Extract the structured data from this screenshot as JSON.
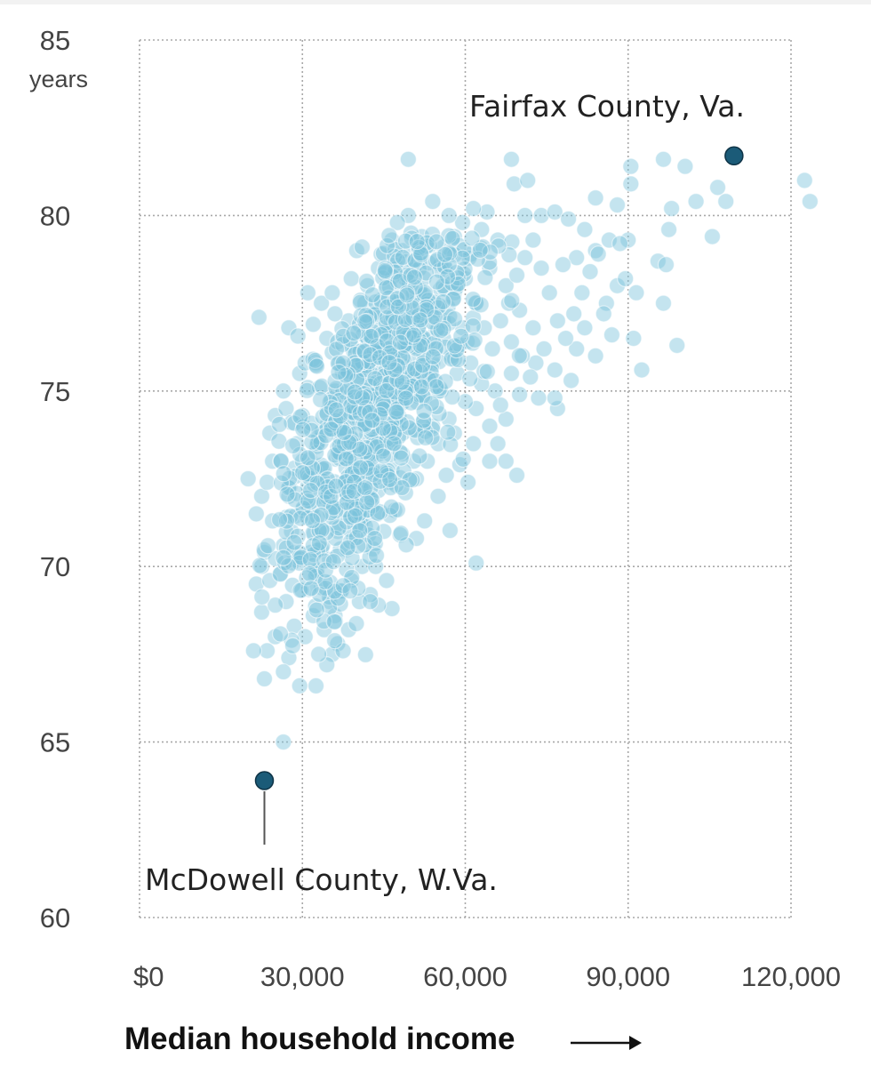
{
  "chart_data": {
    "type": "scatter",
    "xlabel": "Median household income",
    "ylabel": "",
    "y_unit": "years",
    "xlim": [
      0,
      120000
    ],
    "ylim": [
      60,
      85
    ],
    "x_ticks": [
      0,
      30000,
      60000,
      90000,
      120000
    ],
    "x_tick_labels": [
      "$0",
      "30,000",
      "60,000",
      "90,000",
      "120,000"
    ],
    "y_ticks": [
      60,
      65,
      70,
      75,
      80,
      85
    ],
    "y_tick_labels": [
      "60",
      "65",
      "70",
      "75",
      "80",
      "85"
    ],
    "grid": true,
    "point_color": "#7cc3dc",
    "highlight_color": "#1b5b78",
    "annotations": [
      {
        "label": "Fairfax County, Va.",
        "x": 109500,
        "y": 81.7
      },
      {
        "label": "McDowell County, W.Va.",
        "x": 23000,
        "y": 63.9
      }
    ],
    "cluster_center": [
      45000,
      75
    ],
    "points": [
      [
        49500,
        81.6
      ],
      [
        68500,
        81.6
      ],
      [
        69000,
        80.9
      ],
      [
        71500,
        81.0
      ],
      [
        90500,
        81.4
      ],
      [
        96500,
        81.6
      ],
      [
        100500,
        81.4
      ],
      [
        90500,
        80.9
      ],
      [
        106500,
        80.8
      ],
      [
        108000,
        80.4
      ],
      [
        122500,
        81.0
      ],
      [
        123500,
        80.4
      ],
      [
        49500,
        80.0
      ],
      [
        54000,
        80.4
      ],
      [
        59500,
        79.8
      ],
      [
        64000,
        80.1
      ],
      [
        71000,
        80.0
      ],
      [
        74000,
        80.0
      ],
      [
        76500,
        80.1
      ],
      [
        79000,
        79.9
      ],
      [
        82000,
        79.6
      ],
      [
        84000,
        80.5
      ],
      [
        88000,
        80.3
      ],
      [
        98000,
        80.2
      ],
      [
        102500,
        80.4
      ],
      [
        105500,
        79.4
      ],
      [
        97500,
        79.6
      ],
      [
        90000,
        79.3
      ],
      [
        86500,
        79.3
      ],
      [
        84000,
        79.0
      ],
      [
        80500,
        78.8
      ],
      [
        78000,
        78.6
      ],
      [
        95500,
        78.7
      ],
      [
        97000,
        78.6
      ],
      [
        96500,
        77.5
      ],
      [
        99000,
        76.3
      ],
      [
        92500,
        75.6
      ],
      [
        91000,
        76.5
      ],
      [
        88000,
        78.0
      ],
      [
        86000,
        77.5
      ],
      [
        84000,
        76.0
      ],
      [
        82000,
        76.8
      ],
      [
        80500,
        76.2
      ],
      [
        79500,
        75.3
      ],
      [
        77000,
        74.5
      ],
      [
        76500,
        74.8
      ],
      [
        73500,
        74.8
      ],
      [
        70000,
        74.9
      ],
      [
        67500,
        74.2
      ],
      [
        66000,
        73.5
      ],
      [
        64500,
        73.0
      ],
      [
        69500,
        72.6
      ],
      [
        60500,
        72.4
      ],
      [
        62000,
        70.1
      ],
      [
        58000,
        73.8
      ],
      [
        56500,
        72.6
      ],
      [
        55000,
        72.0
      ],
      [
        52500,
        71.3
      ],
      [
        51000,
        70.8
      ],
      [
        48000,
        70.9
      ],
      [
        46500,
        68.8
      ],
      [
        44000,
        68.9
      ],
      [
        42500,
        69.2
      ],
      [
        40500,
        69.0
      ],
      [
        38500,
        68.2
      ],
      [
        36500,
        67.8
      ],
      [
        35500,
        67.5
      ],
      [
        34500,
        67.2
      ],
      [
        33000,
        67.5
      ],
      [
        32500,
        66.6
      ],
      [
        29500,
        66.6
      ],
      [
        27500,
        67.4
      ],
      [
        26500,
        67.0
      ],
      [
        25000,
        68.0
      ],
      [
        23500,
        67.6
      ],
      [
        21000,
        67.6
      ],
      [
        23000,
        66.8
      ],
      [
        22500,
        68.7
      ],
      [
        21500,
        69.5
      ],
      [
        22500,
        70.0
      ],
      [
        21500,
        71.5
      ],
      [
        20000,
        72.5
      ],
      [
        22500,
        72.0
      ],
      [
        24500,
        73.0
      ],
      [
        24000,
        73.8
      ],
      [
        25000,
        74.3
      ],
      [
        27000,
        74.5
      ],
      [
        26500,
        75.0
      ],
      [
        29500,
        75.5
      ],
      [
        27500,
        76.8
      ],
      [
        22000,
        77.1
      ],
      [
        31000,
        77.8
      ],
      [
        26500,
        65.0
      ],
      [
        35500,
        76.1
      ],
      [
        40000,
        79.0
      ],
      [
        41000,
        79.1
      ],
      [
        44000,
        78.5
      ],
      [
        46500,
        79.3
      ],
      [
        48500,
        79.0
      ],
      [
        51500,
        78.7
      ],
      [
        56000,
        79.1
      ],
      [
        61000,
        78.9
      ],
      [
        64500,
        78.5
      ],
      [
        67500,
        78.0
      ],
      [
        70000,
        77.3
      ],
      [
        72500,
        76.8
      ],
      [
        74500,
        76.2
      ],
      [
        76500,
        75.6
      ],
      [
        73000,
        75.8
      ],
      [
        68500,
        75.5
      ],
      [
        65500,
        75.0
      ],
      [
        62000,
        74.5
      ],
      [
        60000,
        74.7
      ],
      [
        58500,
        75.5
      ],
      [
        56000,
        76.5
      ],
      [
        53500,
        77.5
      ],
      [
        50500,
        77.8
      ],
      [
        47500,
        77.5
      ],
      [
        44500,
        77.6
      ],
      [
        41500,
        77.5
      ],
      [
        38500,
        77.0
      ],
      [
        36000,
        77.2
      ],
      [
        34500,
        76.5
      ],
      [
        32500,
        75.8
      ],
      [
        31000,
        75.1
      ],
      [
        30000,
        74.3
      ],
      [
        29000,
        73.5
      ],
      [
        28500,
        72.8
      ],
      [
        27500,
        72.0
      ],
      [
        27000,
        71.4
      ],
      [
        26500,
        70.6
      ],
      [
        26000,
        69.8
      ],
      [
        27000,
        69.0
      ],
      [
        28500,
        68.3
      ],
      [
        30500,
        68.0
      ],
      [
        32000,
        68.6
      ],
      [
        33500,
        69.4
      ],
      [
        35000,
        70.2
      ],
      [
        36500,
        71.0
      ],
      [
        38000,
        71.8
      ],
      [
        39500,
        72.6
      ],
      [
        41000,
        73.3
      ],
      [
        42500,
        74.0
      ],
      [
        44000,
        74.8
      ],
      [
        45500,
        75.5
      ],
      [
        47000,
        76.1
      ],
      [
        48500,
        76.8
      ],
      [
        50000,
        77.3
      ],
      [
        52000,
        76.5
      ],
      [
        54000,
        75.8
      ],
      [
        55500,
        75.0
      ],
      [
        57000,
        74.2
      ],
      [
        55000,
        73.5
      ],
      [
        53000,
        73.0
      ],
      [
        51000,
        72.5
      ],
      [
        49000,
        72.1
      ],
      [
        47000,
        71.6
      ],
      [
        45000,
        71.0
      ],
      [
        43000,
        70.5
      ],
      [
        41000,
        70.0
      ],
      [
        39000,
        69.6
      ],
      [
        37000,
        69.3
      ],
      [
        35000,
        69.0
      ],
      [
        33500,
        70.5
      ],
      [
        32000,
        71.4
      ],
      [
        31000,
        72.3
      ],
      [
        30000,
        73.0
      ],
      [
        33000,
        73.6
      ],
      [
        34500,
        74.4
      ],
      [
        36000,
        75.0
      ],
      [
        37500,
        75.7
      ],
      [
        39000,
        76.3
      ],
      [
        40500,
        76.9
      ],
      [
        42000,
        76.3
      ],
      [
        43500,
        75.7
      ],
      [
        45000,
        74.2
      ],
      [
        46500,
        73.5
      ],
      [
        48000,
        74.7
      ],
      [
        49500,
        75.2
      ],
      [
        51000,
        76.0
      ],
      [
        52500,
        74.8
      ],
      [
        54000,
        74.0
      ],
      [
        56000,
        77.0
      ],
      [
        58000,
        77.8
      ],
      [
        60000,
        78.2
      ],
      [
        62000,
        77.5
      ],
      [
        63500,
        76.8
      ],
      [
        65000,
        76.2
      ],
      [
        66500,
        77.0
      ],
      [
        68000,
        77.5
      ],
      [
        69500,
        78.3
      ],
      [
        71000,
        78.8
      ],
      [
        72500,
        79.3
      ],
      [
        74000,
        78.5
      ],
      [
        75500,
        77.8
      ],
      [
        77000,
        77.0
      ],
      [
        78500,
        76.5
      ],
      [
        80000,
        77.2
      ],
      [
        81500,
        77.8
      ],
      [
        83000,
        78.4
      ],
      [
        84500,
        78.9
      ],
      [
        85500,
        77.2
      ],
      [
        87000,
        76.6
      ],
      [
        88500,
        79.2
      ],
      [
        89500,
        78.2
      ],
      [
        91500,
        77.8
      ],
      [
        66000,
        79.3
      ],
      [
        63000,
        79.6
      ],
      [
        58000,
        79.4
      ],
      [
        55500,
        78.6
      ],
      [
        52000,
        79.4
      ],
      [
        57000,
        80.0
      ],
      [
        61500,
        80.2
      ],
      [
        37000,
        70.5
      ],
      [
        38500,
        73.0
      ],
      [
        40000,
        74.5
      ],
      [
        42000,
        72.0
      ],
      [
        44000,
        73.2
      ],
      [
        46000,
        72.4
      ],
      [
        48500,
        73.8
      ],
      [
        50500,
        73.0
      ],
      [
        35000,
        72.0
      ],
      [
        36500,
        73.4
      ],
      [
        33500,
        72.8
      ],
      [
        31500,
        70.4
      ],
      [
        30000,
        71.6
      ],
      [
        29000,
        70.2
      ],
      [
        28000,
        71.0
      ],
      [
        34000,
        68.2
      ],
      [
        32500,
        69.8
      ],
      [
        36000,
        68.6
      ],
      [
        39500,
        70.8
      ],
      [
        41500,
        71.4
      ],
      [
        43500,
        70.0
      ],
      [
        45500,
        69.6
      ],
      [
        40500,
        75.6
      ],
      [
        38000,
        74.8
      ],
      [
        36500,
        76.4
      ],
      [
        43000,
        77.2
      ],
      [
        45500,
        78.0
      ],
      [
        47000,
        78.6
      ],
      [
        49000,
        78.2
      ],
      [
        53000,
        76.2
      ],
      [
        57500,
        76.0
      ],
      [
        59500,
        76.8
      ],
      [
        61000,
        75.8
      ],
      [
        63000,
        75.2
      ],
      [
        64500,
        74.0
      ],
      [
        66500,
        74.6
      ],
      [
        68500,
        76.4
      ],
      [
        70500,
        76.0
      ],
      [
        72000,
        75.4
      ],
      [
        67500,
        73.0
      ],
      [
        59000,
        72.9
      ],
      [
        61500,
        73.5
      ],
      [
        40000,
        72.3
      ],
      [
        42500,
        69.0
      ],
      [
        37500,
        67.6
      ],
      [
        28000,
        67.9
      ],
      [
        25000,
        68.9
      ],
      [
        24000,
        69.6
      ],
      [
        23000,
        70.4
      ],
      [
        24500,
        71.3
      ],
      [
        23500,
        72.4
      ],
      [
        26000,
        73.0
      ],
      [
        28000,
        74.1
      ],
      [
        30500,
        75.8
      ],
      [
        32000,
        76.9
      ],
      [
        33500,
        77.5
      ],
      [
        35500,
        77.8
      ],
      [
        39000,
        78.2
      ],
      [
        42000,
        78.0
      ],
      [
        44500,
        78.9
      ],
      [
        47500,
        79.8
      ],
      [
        50000,
        79.5
      ]
    ]
  }
}
